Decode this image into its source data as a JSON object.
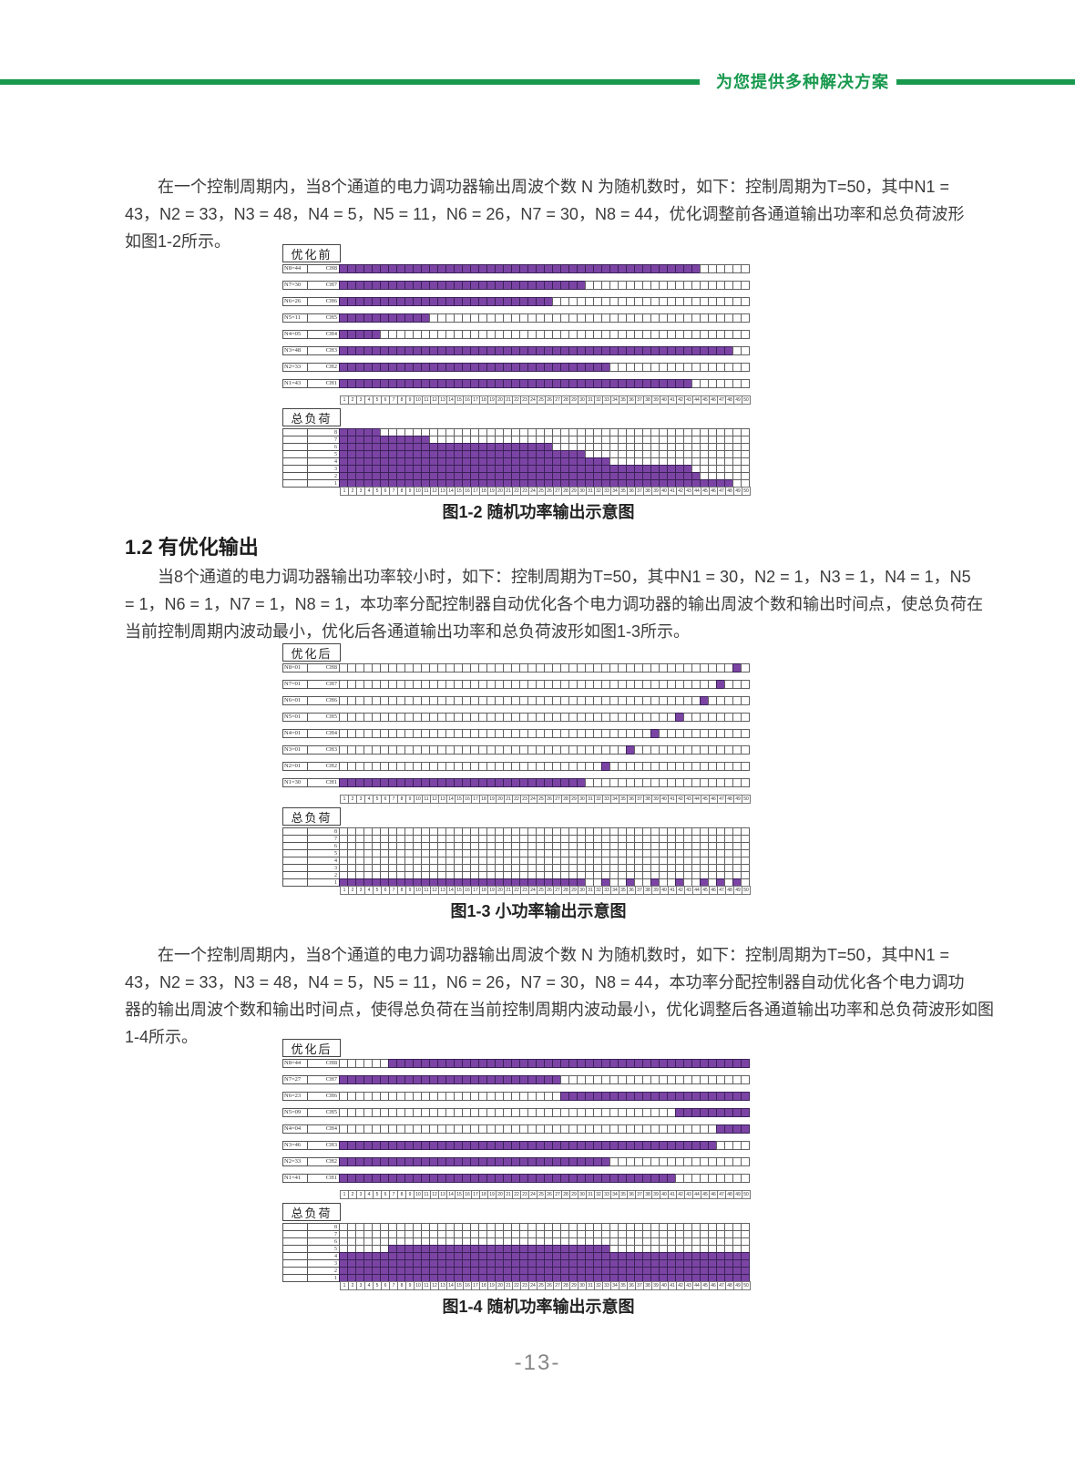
{
  "colors": {
    "green": "#18994e",
    "purple": "#7b44a4",
    "purple_border": "#3a2158"
  },
  "header": {
    "slogan": "为您提供多种解决方案"
  },
  "paragraphs": [
    {
      "lines": [
        "在一个控制周期内，当8个通道的电力调功器输出周波个数 N 为随机数时，如下：控制周期为T=50，其中N1 =",
        "43，N2 = 33，N3 = 48，N4 = 5，N5 = 11，N6 = 26，N7 = 30，N8 = 44，优化调整前各通道输出功率和总负荷波形",
        "如图1-2所示。"
      ]
    },
    {
      "lines": [
        "当8个通道的电力调功器输出功率较小时，如下：控制周期为T=50，其中N1 = 30，N2 = 1，N3 = 1，N4 = 1，N5",
        "= 1，N6 = 1，N7 = 1，N8 = 1，本功率分配控制器自动优化各个电力调功器的输出周波个数和输出时间点，使总负荷在",
        "当前控制周期内波动最小，优化后各通道输出功率和总负荷波形如图1-3所示。"
      ]
    },
    {
      "lines": [
        "在一个控制周期内，当8个通道的电力调功器输出周波个数 N 为随机数时，如下：控制周期为T=50，其中N1 =",
        "43，N2 = 33，N3 = 48，N4 = 5，N5 = 11，N6 = 26，N7 = 30，N8 = 44，本功率分配控制器自动优化各个电力调功",
        "器的输出周波个数和输出时间点，使得总负荷在当前控制周期内波动最小，优化调整后各通道输出功率和总负荷波形如图",
        "1-4所示。"
      ]
    }
  ],
  "section_heading": "1.2 有优化输出",
  "page_number": "-13-",
  "figures": [
    {
      "title": "优化前",
      "load_title": "总负荷",
      "caption": "图1-2 随机功率输出示意图",
      "t_max": 50,
      "channels": [
        {
          "n_label": "N8=44",
          "ch_label": "CH8",
          "ranges": [
            [
              1,
              44
            ]
          ]
        },
        {
          "n_label": "N7=30",
          "ch_label": "CH7",
          "ranges": [
            [
              1,
              30
            ]
          ]
        },
        {
          "n_label": "N6=26",
          "ch_label": "CH6",
          "ranges": [
            [
              1,
              26
            ]
          ]
        },
        {
          "n_label": "N5=11",
          "ch_label": "CH5",
          "ranges": [
            [
              1,
              11
            ]
          ]
        },
        {
          "n_label": "N4=05",
          "ch_label": "CH4",
          "ranges": [
            [
              1,
              5
            ]
          ]
        },
        {
          "n_label": "N3=48",
          "ch_label": "CH3",
          "ranges": [
            [
              1,
              48
            ]
          ]
        },
        {
          "n_label": "N2=33",
          "ch_label": "CH2",
          "ranges": [
            [
              1,
              33
            ]
          ]
        },
        {
          "n_label": "N1=43",
          "ch_label": "CH1",
          "ranges": [
            [
              1,
              43
            ]
          ]
        }
      ],
      "load_rows": [
        {
          "level": "8",
          "ranges": [
            [
              1,
              5
            ]
          ]
        },
        {
          "level": "7",
          "ranges": [
            [
              1,
              11
            ]
          ]
        },
        {
          "level": "6",
          "ranges": [
            [
              1,
              26
            ]
          ]
        },
        {
          "level": "5",
          "ranges": [
            [
              1,
              30
            ]
          ]
        },
        {
          "level": "4",
          "ranges": [
            [
              1,
              33
            ]
          ]
        },
        {
          "level": "3",
          "ranges": [
            [
              1,
              43
            ]
          ]
        },
        {
          "level": "2",
          "ranges": [
            [
              1,
              44
            ]
          ]
        },
        {
          "level": "1",
          "ranges": [
            [
              1,
              48
            ]
          ]
        }
      ]
    },
    {
      "title": "优化后",
      "load_title": "总负荷",
      "caption": "图1-3 小功率输出示意图",
      "t_max": 50,
      "channels": [
        {
          "n_label": "N8=01",
          "ch_label": "CH8",
          "ranges": [
            [
              49,
              49
            ]
          ]
        },
        {
          "n_label": "N7=01",
          "ch_label": "CH7",
          "ranges": [
            [
              47,
              47
            ]
          ]
        },
        {
          "n_label": "N6=01",
          "ch_label": "CH6",
          "ranges": [
            [
              45,
              45
            ]
          ]
        },
        {
          "n_label": "N5=01",
          "ch_label": "CH5",
          "ranges": [
            [
              42,
              42
            ]
          ]
        },
        {
          "n_label": "N4=01",
          "ch_label": "CH4",
          "ranges": [
            [
              39,
              39
            ]
          ]
        },
        {
          "n_label": "N3=01",
          "ch_label": "CH3",
          "ranges": [
            [
              36,
              36
            ]
          ]
        },
        {
          "n_label": "N2=01",
          "ch_label": "CH2",
          "ranges": [
            [
              33,
              33
            ]
          ]
        },
        {
          "n_label": "N1=30",
          "ch_label": "CH1",
          "ranges": [
            [
              1,
              30
            ]
          ]
        }
      ],
      "load_rows": [
        {
          "level": "8",
          "ranges": []
        },
        {
          "level": "7",
          "ranges": []
        },
        {
          "level": "6",
          "ranges": []
        },
        {
          "level": "5",
          "ranges": []
        },
        {
          "level": "4",
          "ranges": []
        },
        {
          "level": "3",
          "ranges": []
        },
        {
          "level": "2",
          "ranges": []
        },
        {
          "level": "1",
          "ranges": [
            [
              1,
              30
            ],
            [
              33,
              33
            ],
            [
              36,
              36
            ],
            [
              39,
              39
            ],
            [
              42,
              42
            ],
            [
              45,
              45
            ],
            [
              47,
              47
            ],
            [
              49,
              49
            ]
          ]
        }
      ]
    },
    {
      "title": "优化后",
      "load_title": "总负荷",
      "caption": "图1-4 随机功率输出示意图",
      "t_max": 50,
      "channels": [
        {
          "n_label": "N8=44",
          "ch_label": "CH8",
          "ranges": [
            [
              7,
              50
            ]
          ]
        },
        {
          "n_label": "N7=27",
          "ch_label": "CH7",
          "ranges": [
            [
              1,
              27
            ]
          ]
        },
        {
          "n_label": "N6=23",
          "ch_label": "CH6",
          "ranges": [
            [
              28,
              50
            ]
          ]
        },
        {
          "n_label": "N5=09",
          "ch_label": "CH5",
          "ranges": [
            [
              42,
              50
            ]
          ]
        },
        {
          "n_label": "N4=04",
          "ch_label": "CH4",
          "ranges": [
            [
              47,
              50
            ]
          ]
        },
        {
          "n_label": "N3=46",
          "ch_label": "CH3",
          "ranges": [
            [
              1,
              46
            ]
          ]
        },
        {
          "n_label": "N2=33",
          "ch_label": "CH2",
          "ranges": [
            [
              1,
              33
            ]
          ]
        },
        {
          "n_label": "N1=41",
          "ch_label": "CH1",
          "ranges": [
            [
              1,
              41
            ]
          ]
        }
      ],
      "load_rows": [
        {
          "level": "8",
          "ranges": []
        },
        {
          "level": "7",
          "ranges": []
        },
        {
          "level": "6",
          "ranges": []
        },
        {
          "level": "5",
          "ranges": [
            [
              7,
              33
            ]
          ]
        },
        {
          "level": "4",
          "ranges": [
            [
              1,
              50
            ]
          ]
        },
        {
          "level": "3",
          "ranges": [
            [
              1,
              50
            ]
          ]
        },
        {
          "level": "2",
          "ranges": [
            [
              1,
              50
            ]
          ]
        },
        {
          "level": "1",
          "ranges": [
            [
              1,
              50
            ]
          ]
        }
      ]
    }
  ]
}
